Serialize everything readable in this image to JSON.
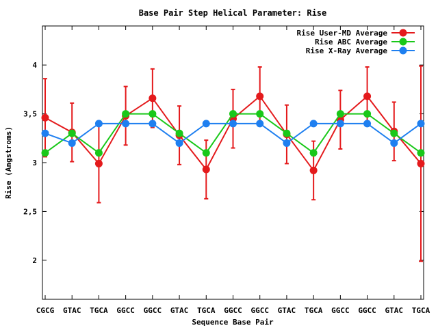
{
  "chart_data": {
    "type": "line",
    "title": "Base Pair Step Helical Parameter: Rise",
    "xlabel": "Sequence Base Pair",
    "ylabel": "Rise (Angstroms)",
    "categories": [
      "CGCG",
      "GTAC",
      "TGCA",
      "GGCC",
      "GGCC",
      "GTAC",
      "TGCA",
      "GGCC",
      "GGCC",
      "GTAC",
      "TGCA",
      "GGCC",
      "GGCC",
      "GTAC",
      "TGCA"
    ],
    "ylim": [
      1.6,
      4.4
    ],
    "yticks": [
      2,
      2.5,
      3,
      3.5,
      4
    ],
    "ytick_labels": [
      "2",
      "2,5",
      "3",
      "3,5",
      "4"
    ],
    "grid": false,
    "legend_position": "top-right",
    "series": [
      {
        "name": "Rise User-MD Average",
        "color": "#e41a1c",
        "values": [
          3.46,
          3.31,
          2.99,
          3.48,
          3.66,
          3.28,
          2.93,
          3.45,
          3.68,
          3.29,
          2.92,
          3.44,
          3.68,
          3.32,
          2.99
        ],
        "error": [
          0.4,
          0.3,
          0.4,
          0.3,
          0.3,
          0.3,
          0.3,
          0.3,
          0.3,
          0.3,
          0.3,
          0.3,
          0.3,
          0.3,
          1.0
        ]
      },
      {
        "name": "Rise ABC Average",
        "color": "#19c819",
        "values": [
          3.1,
          3.3,
          3.1,
          3.5,
          3.5,
          3.3,
          3.1,
          3.5,
          3.5,
          3.3,
          3.1,
          3.5,
          3.5,
          3.3,
          3.1
        ]
      },
      {
        "name": "Rise X-Ray Average",
        "color": "#1e7ff0",
        "values": [
          3.3,
          3.2,
          3.4,
          3.4,
          3.4,
          3.2,
          3.4,
          3.4,
          3.4,
          3.2,
          3.4,
          3.4,
          3.4,
          3.2,
          3.4
        ]
      }
    ]
  }
}
